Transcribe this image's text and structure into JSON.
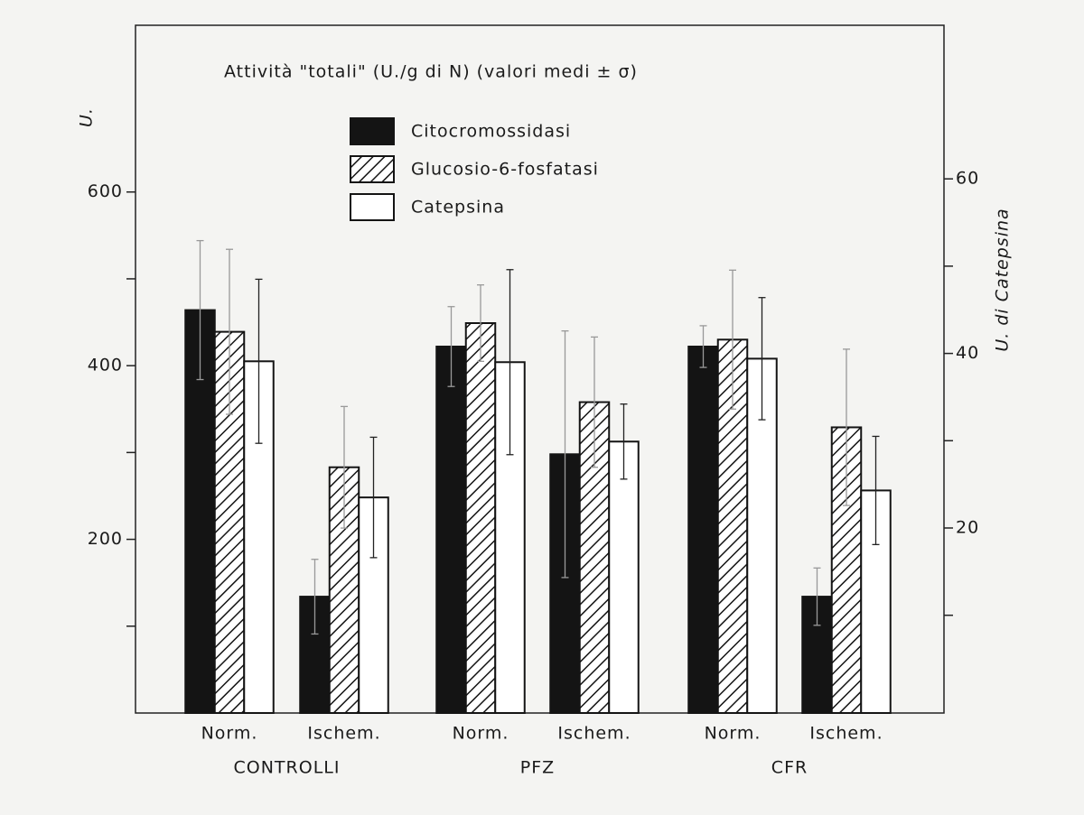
{
  "chart_data": {
    "type": "bar",
    "title": "Attività \"totali\" (U./g di N) (valori medi ± σ)",
    "y_label": "U.",
    "y2_label": "U. di Catepsina",
    "categories": [
      "Norm.",
      "Ischem.",
      "Norm.",
      "Ischem.",
      "Norm.",
      "Ischem."
    ],
    "groups": [
      "CONTROLLI",
      "PFZ",
      "CFR"
    ],
    "series": [
      {
        "name": "Citocromossidasi",
        "color": "#141414",
        "pattern": "solid",
        "axis": "y",
        "values": [
          464,
          134,
          422,
          298,
          422,
          134
        ],
        "errors": [
          80,
          43,
          46,
          142,
          24,
          33
        ]
      },
      {
        "name": "Glucosio-6-fosfatasi",
        "color": "#141414",
        "pattern": "hatch",
        "axis": "y",
        "values": [
          439,
          283,
          449,
          358,
          430,
          329
        ],
        "errors": [
          95,
          70,
          44,
          75,
          80,
          90
        ]
      },
      {
        "name": "Catepsina",
        "color": "#ffffff",
        "pattern": "solid",
        "axis": "y2",
        "values": [
          39.1,
          23.5,
          39.0,
          29.9,
          39.4,
          24.3
        ],
        "errors": [
          9.4,
          6.9,
          10.6,
          4.3,
          7.0,
          6.2
        ]
      }
    ],
    "ylim": [
      0,
      792
    ],
    "yticks": [
      200,
      400,
      600
    ],
    "yminorticks": [
      100,
      300,
      500
    ],
    "y2lim": [
      -1.2,
      77.6
    ],
    "y2ticks": [
      20,
      40,
      60
    ],
    "y2minorticks": [
      10,
      30,
      50
    ]
  }
}
